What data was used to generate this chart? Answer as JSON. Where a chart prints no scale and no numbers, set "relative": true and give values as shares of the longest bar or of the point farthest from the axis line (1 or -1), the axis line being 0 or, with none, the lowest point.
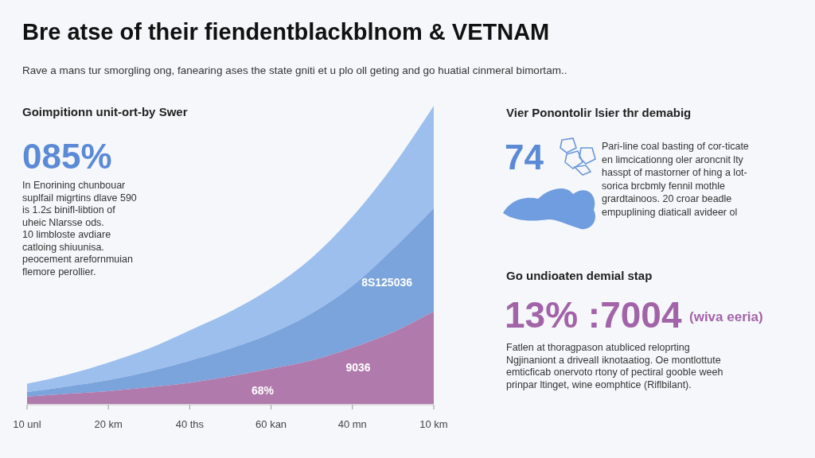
{
  "chart_data": {
    "type": "area",
    "stacked": true,
    "relative": true,
    "title": "Bre atse of their fiendentblackblnom & VETNAM",
    "subtitle": "Rave a mans tur smorgling ong, fanearing ases the state gniti et u plo oll geting and go huatial cinmeral bimortam..",
    "categories": [
      "10 unl",
      null,
      "20 km",
      null,
      "40 ths",
      null,
      "60 kan",
      null,
      "40 mn",
      null,
      "10 km"
    ],
    "series": [
      {
        "color": "#b07aad",
        "values": [
          0.025,
          0.034,
          0.043,
          0.056,
          0.071,
          0.093,
          0.118,
          0.146,
          0.189,
          0.241,
          0.31
        ]
      },
      {
        "color": "#7ba3dc",
        "values": [
          0.015,
          0.025,
          0.037,
          0.053,
          0.074,
          0.093,
          0.118,
          0.158,
          0.207,
          0.279,
          0.347
        ]
      },
      {
        "color": "#9dbfee",
        "values": [
          0.028,
          0.04,
          0.059,
          0.077,
          0.102,
          0.124,
          0.152,
          0.186,
          0.232,
          0.279,
          0.343
        ]
      }
    ],
    "annotations": [
      "Goimpitionn unit-ort-by Swer",
      "085%",
      "In Enorining chunbouar\nsuplfail migrtins  dlave 590\nis 1.2≤ binifl-libtion of\nuheic Nlarsse ods.\n10 limbloste avdiare\ncatloing shiuunisa.\npeocement arefornmuian\nflemore perollier.",
      "8S125036",
      "9036",
      "68%",
      "Vier Ponontolir lsier thr demabig",
      "74",
      "Pari-line coal basting of cor-ticate\nen limcicationng oler aroncnit lty\nhasspt of mastorner of hing  a lot-\nsorica  brcbmly   fennil   mothle\ngrardtainoos.   20    croar beadle\nempuplining diaticall avideer ol",
      "Go undioaten demial stap",
      "13% :7004",
      "(wiva eeria)",
      "Fatlen  at  thoragpason  atubliced  reloprting\nNgjinaniont a drivealI iknotaatiog.  Oe montlottute\nemticficab onervoto rtony of pectiral goobIe weeh\nprinpar ltinget, wine eomphtice (Riflbilant)."
    ]
  }
}
